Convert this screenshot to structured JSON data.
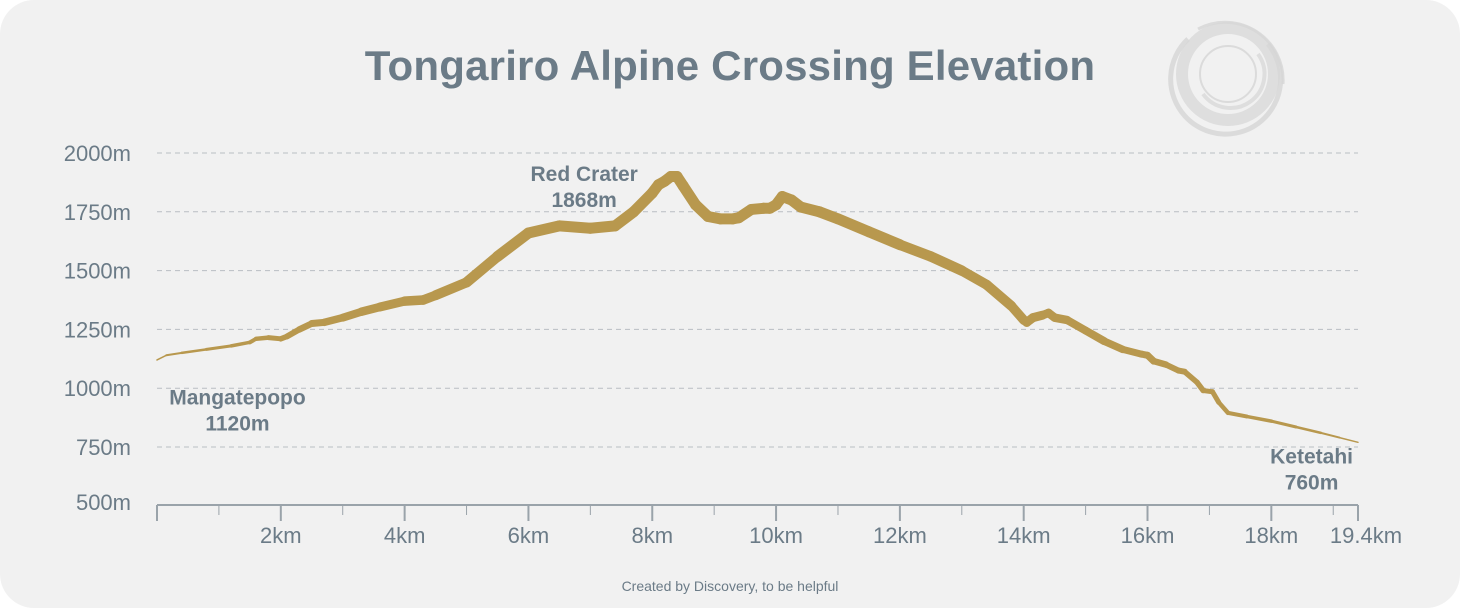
{
  "chart_data": {
    "type": "line",
    "title": "Tongariro Alpine Crossing Elevation",
    "xlabel": "",
    "ylabel": "",
    "xlim": [
      0,
      19.4
    ],
    "ylim": [
      500,
      2000
    ],
    "ytick_labels": [
      "2000m",
      "1750m",
      "1500m",
      "1250m",
      "1000m",
      "750m",
      "500m"
    ],
    "ytick_values": [
      2000,
      1750,
      1500,
      1250,
      1000,
      750,
      500
    ],
    "xtick_labels": [
      "2km",
      "4km",
      "6km",
      "8km",
      "10km",
      "12km",
      "14km",
      "16km",
      "18km",
      "19.4km"
    ],
    "xtick_values": [
      2,
      4,
      6,
      8,
      10,
      12,
      14,
      16,
      18,
      19.4
    ],
    "grid": true,
    "line_color": "#b8984e",
    "grid_color": "#b9bec3",
    "text_color": "#6b7b87",
    "series": [
      {
        "name": "Elevation",
        "x": [
          0,
          0.15,
          0.4,
          0.8,
          1.2,
          1.5,
          1.6,
          1.8,
          2.0,
          2.1,
          2.3,
          2.5,
          2.7,
          3.0,
          3.3,
          3.6,
          4.0,
          4.3,
          4.5,
          5.0,
          5.5,
          6.0,
          6.5,
          7.0,
          7.4,
          7.7,
          8.0,
          8.1,
          8.2,
          8.3,
          8.4,
          8.5,
          8.7,
          8.9,
          9.1,
          9.3,
          9.4,
          9.6,
          9.8,
          9.9,
          10.0,
          10.1,
          10.25,
          10.4,
          10.7,
          11.0,
          11.5,
          12.0,
          12.5,
          13.0,
          13.4,
          13.8,
          14.0,
          14.05,
          14.15,
          14.3,
          14.4,
          14.5,
          14.7,
          15.0,
          15.3,
          15.6,
          15.9,
          16.0,
          16.1,
          16.3,
          16.5,
          16.6,
          16.8,
          16.9,
          17.05,
          17.15,
          17.3,
          17.6,
          18.0,
          18.4,
          18.8,
          19.1,
          19.4
        ],
        "y": [
          1120,
          1140,
          1150,
          1165,
          1180,
          1195,
          1210,
          1215,
          1210,
          1220,
          1250,
          1275,
          1280,
          1300,
          1325,
          1345,
          1370,
          1375,
          1395,
          1450,
          1560,
          1660,
          1690,
          1680,
          1690,
          1750,
          1830,
          1865,
          1880,
          1900,
          1900,
          1860,
          1780,
          1730,
          1720,
          1720,
          1725,
          1760,
          1765,
          1765,
          1780,
          1815,
          1800,
          1770,
          1750,
          1720,
          1665,
          1610,
          1560,
          1500,
          1440,
          1350,
          1290,
          1280,
          1300,
          1310,
          1320,
          1300,
          1290,
          1245,
          1200,
          1165,
          1145,
          1140,
          1115,
          1100,
          1075,
          1070,
          1025,
          990,
          985,
          940,
          895,
          880,
          860,
          835,
          810,
          790,
          770
        ],
        "widths": [
          1.5,
          2,
          2.5,
          3,
          3.5,
          4,
          4.5,
          5,
          5.5,
          6,
          6.5,
          7,
          7.5,
          8,
          8.5,
          9,
          9.5,
          9.5,
          10,
          10.5,
          11,
          11,
          11,
          11,
          11,
          11,
          11,
          11,
          11,
          11,
          11,
          11,
          11,
          11,
          11,
          11,
          11,
          11,
          11,
          11,
          11,
          11,
          11,
          11,
          11,
          11,
          11,
          10.5,
          10.5,
          10,
          10,
          9.5,
          9,
          9,
          9,
          8.5,
          8.5,
          8.5,
          8,
          8,
          7.5,
          7,
          7,
          7,
          6.5,
          6,
          6,
          5.5,
          5.5,
          5,
          5,
          4.5,
          4,
          3.5,
          3,
          2.5,
          2,
          1.5
        ]
      }
    ],
    "annotations": [
      {
        "name": "mangatepopo",
        "place": "Mangatepopo",
        "elev": "1120m",
        "x": 1.3,
        "y": 930
      },
      {
        "name": "red-crater",
        "place": "Red Crater",
        "elev": "1868m",
        "x": 6.9,
        "y": 1880
      },
      {
        "name": "ketetahi",
        "place": "Ketetahi",
        "elev": "760m",
        "x": 18.65,
        "y": 680
      }
    ]
  },
  "footer": "Created by Discovery, to be helpful",
  "logo_icon": "swirl-logo-icon"
}
